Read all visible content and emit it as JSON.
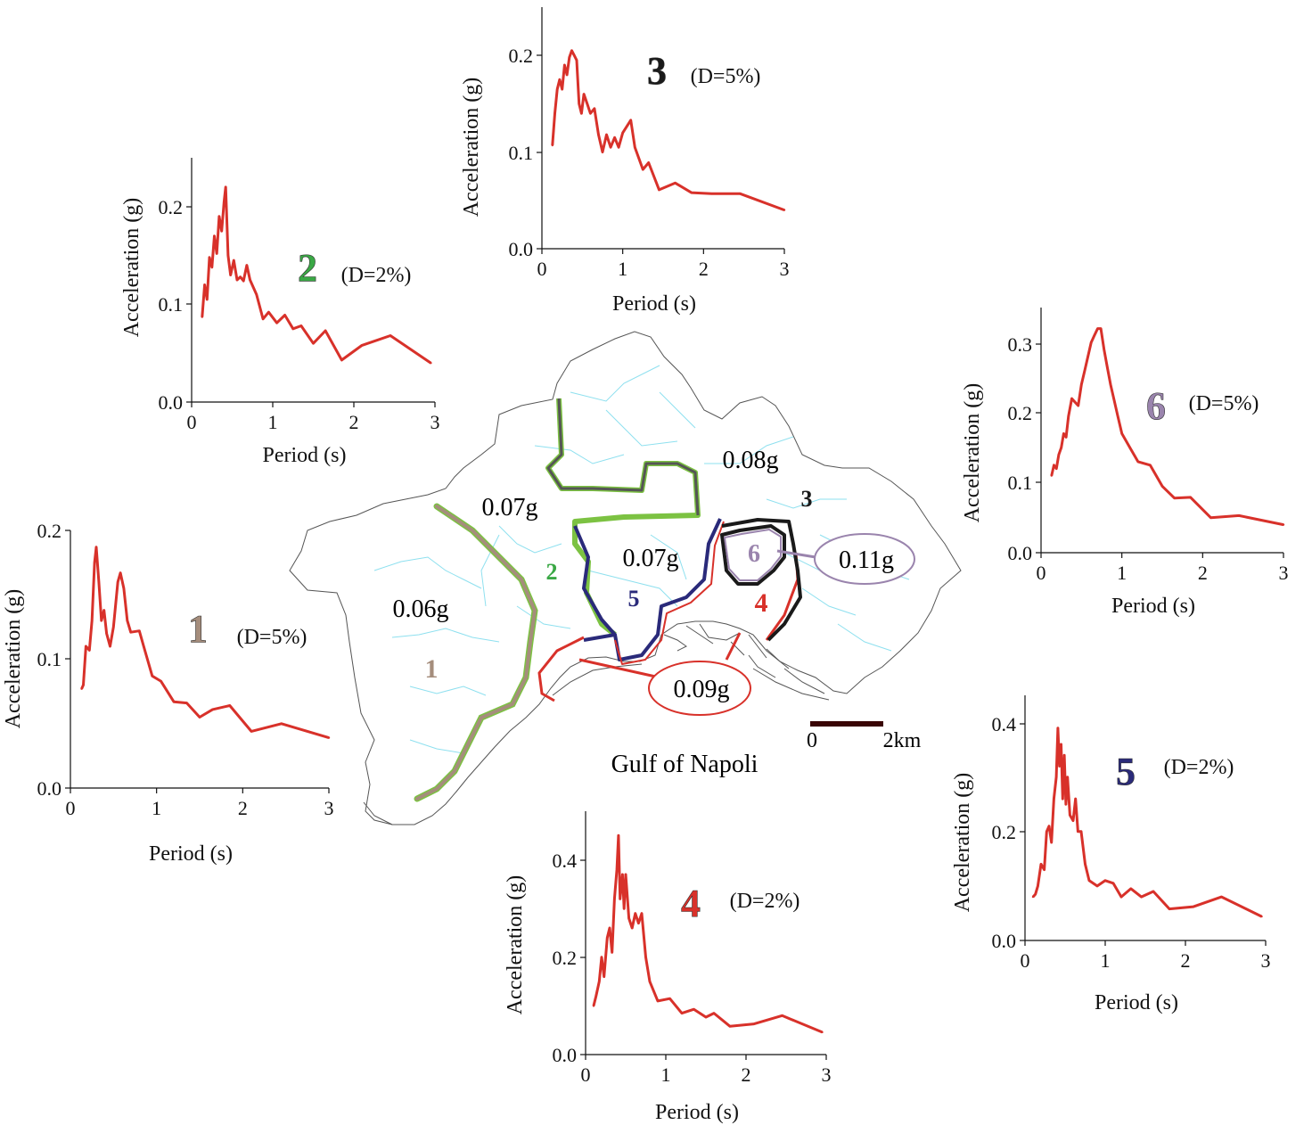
{
  "colors": {
    "spectrum": "#d8312a",
    "zone1": "#a58d7c",
    "zone2": "#3aa845",
    "zone3": "#1a1a1a",
    "zone4": "#d8312a",
    "zone5": "#2a2a7a",
    "zone6": "#9a84ad",
    "zone5_outline": "#e8d640",
    "green_border": "#7cc242",
    "district_lines": "#8ee0ef",
    "coast": "#555555",
    "scale_bar": "#3a0505"
  },
  "map": {
    "zone_values": [
      {
        "label": "0.06g"
      },
      {
        "label": "0.07g"
      },
      {
        "label": "0.07g"
      },
      {
        "label": "0.08g"
      },
      {
        "label": "0.09g",
        "circled": true
      },
      {
        "label": "0.11g",
        "circled": true
      }
    ],
    "zone_numbers": [
      "1",
      "2",
      "3",
      "4",
      "5",
      "6"
    ],
    "gulf_label": "Gulf of Napoli",
    "scale_start": "0",
    "scale_end": "2km"
  },
  "chart_data": [
    {
      "type": "line",
      "zone": "1",
      "damping": "(D=5%)",
      "xlabel": "Period (s)",
      "ylabel": "Acceleration (g)",
      "xlim": [
        0,
        3
      ],
      "ylim": [
        0,
        0.2
      ],
      "xticks": [
        "0",
        "1",
        "2",
        "3"
      ],
      "yticks": [
        "0.0",
        "0.1",
        "0.2"
      ],
      "x": [
        0.13,
        0.15,
        0.18,
        0.22,
        0.25,
        0.28,
        0.3,
        0.33,
        0.36,
        0.39,
        0.42,
        0.46,
        0.5,
        0.55,
        0.58,
        0.62,
        0.66,
        0.7,
        0.8,
        0.85,
        0.95,
        1.05,
        1.2,
        1.35,
        1.5,
        1.65,
        1.85,
        2.1,
        2.45,
        3.0
      ],
      "y": [
        0.077,
        0.08,
        0.11,
        0.107,
        0.13,
        0.175,
        0.187,
        0.16,
        0.13,
        0.138,
        0.12,
        0.11,
        0.125,
        0.16,
        0.167,
        0.155,
        0.13,
        0.121,
        0.122,
        0.11,
        0.087,
        0.083,
        0.067,
        0.066,
        0.055,
        0.061,
        0.064,
        0.044,
        0.05,
        0.039
      ]
    },
    {
      "type": "line",
      "zone": "2",
      "damping": "(D=2%)",
      "xlabel": "Period (s)",
      "ylabel": "Acceleration (g)",
      "xlim": [
        0,
        3
      ],
      "ylim": [
        0,
        0.25
      ],
      "xticks": [
        "0",
        "1",
        "2",
        "3"
      ],
      "yticks": [
        "0.0",
        "0.1",
        "0.2"
      ],
      "x": [
        0.13,
        0.16,
        0.19,
        0.22,
        0.25,
        0.28,
        0.31,
        0.34,
        0.37,
        0.4,
        0.42,
        0.45,
        0.48,
        0.52,
        0.56,
        0.6,
        0.64,
        0.68,
        0.72,
        0.8,
        0.88,
        0.95,
        1.05,
        1.15,
        1.25,
        1.35,
        1.5,
        1.65,
        1.85,
        2.1,
        2.45,
        2.95
      ],
      "y": [
        0.087,
        0.12,
        0.105,
        0.148,
        0.138,
        0.17,
        0.152,
        0.19,
        0.175,
        0.205,
        0.22,
        0.15,
        0.13,
        0.145,
        0.125,
        0.128,
        0.124,
        0.14,
        0.125,
        0.11,
        0.085,
        0.092,
        0.081,
        0.089,
        0.075,
        0.078,
        0.06,
        0.073,
        0.043,
        0.058,
        0.068,
        0.04
      ]
    },
    {
      "type": "line",
      "zone": "3",
      "damping": "(D=5%)",
      "xlabel": "Period (s)",
      "ylabel": "Acceleration (g)",
      "xlim": [
        0,
        3
      ],
      "ylim": [
        0,
        0.25
      ],
      "xticks": [
        "0",
        "1",
        "2",
        "3"
      ],
      "yticks": [
        "0.0",
        "0.1",
        "0.2"
      ],
      "x": [
        0.13,
        0.16,
        0.19,
        0.22,
        0.25,
        0.28,
        0.31,
        0.34,
        0.37,
        0.4,
        0.43,
        0.46,
        0.49,
        0.52,
        0.56,
        0.6,
        0.65,
        0.7,
        0.75,
        0.8,
        0.85,
        0.9,
        0.95,
        1.0,
        1.1,
        1.15,
        1.25,
        1.32,
        1.45,
        1.65,
        1.85,
        2.1,
        2.45,
        3.0
      ],
      "y": [
        0.107,
        0.14,
        0.165,
        0.175,
        0.165,
        0.19,
        0.18,
        0.198,
        0.205,
        0.2,
        0.195,
        0.15,
        0.14,
        0.16,
        0.15,
        0.14,
        0.145,
        0.118,
        0.1,
        0.118,
        0.105,
        0.115,
        0.105,
        0.12,
        0.133,
        0.105,
        0.082,
        0.089,
        0.061,
        0.068,
        0.058,
        0.057,
        0.057,
        0.04
      ]
    },
    {
      "type": "line",
      "zone": "4",
      "damping": "(D=2%)",
      "xlabel": "Period (s)",
      "ylabel": "Acceleration (g)",
      "xlim": [
        0,
        3
      ],
      "ylim": [
        0,
        0.5
      ],
      "xticks": [
        "0",
        "1",
        "2",
        "3"
      ],
      "yticks": [
        "0.0",
        "0.2",
        "0.4"
      ],
      "x": [
        0.1,
        0.13,
        0.17,
        0.2,
        0.23,
        0.27,
        0.3,
        0.33,
        0.36,
        0.39,
        0.41,
        0.43,
        0.46,
        0.48,
        0.5,
        0.54,
        0.58,
        0.62,
        0.66,
        0.7,
        0.75,
        0.8,
        0.9,
        1.05,
        1.2,
        1.35,
        1.5,
        1.6,
        1.8,
        2.1,
        2.45,
        2.95
      ],
      "y": [
        0.1,
        0.12,
        0.15,
        0.2,
        0.16,
        0.24,
        0.26,
        0.21,
        0.32,
        0.38,
        0.45,
        0.32,
        0.37,
        0.3,
        0.37,
        0.28,
        0.26,
        0.29,
        0.27,
        0.29,
        0.2,
        0.15,
        0.11,
        0.115,
        0.085,
        0.093,
        0.077,
        0.085,
        0.058,
        0.063,
        0.08,
        0.046
      ]
    },
    {
      "type": "line",
      "zone": "5",
      "damping": "(D=2%)",
      "xlabel": "Period (s)",
      "ylabel": "Acceleration (g)",
      "xlim": [
        0,
        3
      ],
      "ylim": [
        0,
        0.45
      ],
      "xticks": [
        "0",
        "1",
        "2",
        "3"
      ],
      "yticks": [
        "0.0",
        "0.2",
        "0.4"
      ],
      "x": [
        0.1,
        0.13,
        0.16,
        0.2,
        0.24,
        0.27,
        0.3,
        0.33,
        0.36,
        0.39,
        0.41,
        0.43,
        0.45,
        0.47,
        0.49,
        0.51,
        0.53,
        0.56,
        0.6,
        0.63,
        0.66,
        0.7,
        0.75,
        0.8,
        0.9,
        1.0,
        1.1,
        1.2,
        1.32,
        1.45,
        1.6,
        1.8,
        2.1,
        2.45,
        2.95
      ],
      "y": [
        0.08,
        0.085,
        0.1,
        0.14,
        0.13,
        0.2,
        0.21,
        0.18,
        0.26,
        0.3,
        0.39,
        0.32,
        0.36,
        0.26,
        0.34,
        0.25,
        0.3,
        0.23,
        0.22,
        0.26,
        0.2,
        0.2,
        0.14,
        0.11,
        0.1,
        0.11,
        0.105,
        0.08,
        0.095,
        0.08,
        0.09,
        0.058,
        0.062,
        0.08,
        0.044
      ]
    },
    {
      "type": "line",
      "zone": "6",
      "damping": "(D=5%)",
      "xlabel": "Period (s)",
      "ylabel": "Acceleration (g)",
      "xlim": [
        0,
        3
      ],
      "ylim": [
        0,
        0.35
      ],
      "xticks": [
        "0",
        "1",
        "2",
        "3"
      ],
      "yticks": [
        "0.0",
        "0.1",
        "0.2",
        "0.3"
      ],
      "x": [
        0.13,
        0.16,
        0.19,
        0.22,
        0.25,
        0.28,
        0.31,
        0.34,
        0.38,
        0.42,
        0.46,
        0.5,
        0.54,
        0.58,
        0.62,
        0.66,
        0.7,
        0.74,
        0.78,
        0.82,
        0.86,
        0.9,
        0.95,
        1.0,
        1.1,
        1.2,
        1.35,
        1.5,
        1.65,
        1.85,
        2.1,
        2.45,
        3.0
      ],
      "y": [
        0.11,
        0.125,
        0.12,
        0.14,
        0.15,
        0.17,
        0.165,
        0.195,
        0.22,
        0.215,
        0.21,
        0.24,
        0.26,
        0.28,
        0.3,
        0.31,
        0.32,
        0.32,
        0.29,
        0.265,
        0.24,
        0.22,
        0.195,
        0.17,
        0.15,
        0.13,
        0.125,
        0.095,
        0.078,
        0.079,
        0.05,
        0.053,
        0.04
      ]
    }
  ]
}
